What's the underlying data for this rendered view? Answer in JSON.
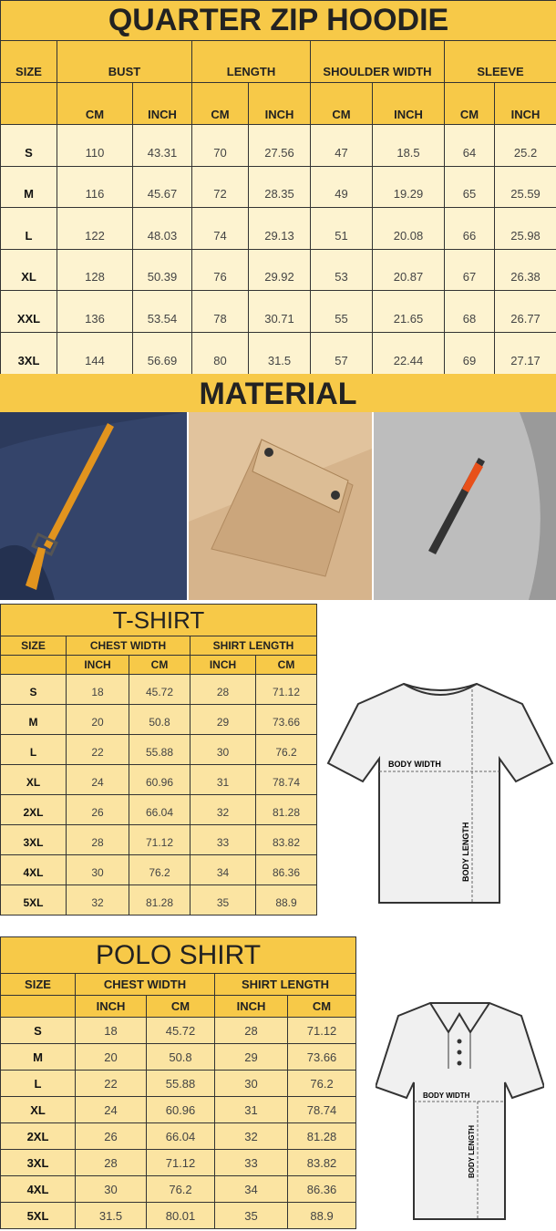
{
  "hoodie": {
    "title": "QUARTER ZIP HOODIE",
    "headers": [
      "SIZE",
      "BUST",
      "LENGTH",
      "SHOULDER WIDTH",
      "SLEEVE"
    ],
    "subheaders": [
      "CM",
      "INCH",
      "CM",
      "INCH",
      "CM",
      "INCH",
      "CM",
      "INCH"
    ],
    "rows": [
      [
        "S",
        "110",
        "43.31",
        "70",
        "27.56",
        "47",
        "18.5",
        "64",
        "25.2"
      ],
      [
        "M",
        "116",
        "45.67",
        "72",
        "28.35",
        "49",
        "19.29",
        "65",
        "25.59"
      ],
      [
        "L",
        "122",
        "48.03",
        "74",
        "29.13",
        "51",
        "20.08",
        "66",
        "25.98"
      ],
      [
        "XL",
        "128",
        "50.39",
        "76",
        "29.92",
        "53",
        "20.87",
        "67",
        "26.38"
      ],
      [
        "XXL",
        "136",
        "53.54",
        "78",
        "30.71",
        "55",
        "21.65",
        "68",
        "26.77"
      ],
      [
        "3XL",
        "144",
        "56.69",
        "80",
        "31.5",
        "57",
        "22.44",
        "69",
        "27.17"
      ]
    ]
  },
  "material": {
    "title": "MATERIAL",
    "photos": [
      "navy-pocket-zipper-closeup",
      "khaki-flap-pocket-closeup",
      "grey-sleeve-zipper-closeup"
    ]
  },
  "tshirt": {
    "title": "T-SHIRT",
    "headers": [
      "SIZE",
      "CHEST WIDTH",
      "SHIRT LENGTH"
    ],
    "subheaders": [
      "INCH",
      "CM",
      "INCH",
      "CM"
    ],
    "rows": [
      [
        "S",
        "18",
        "45.72",
        "28",
        "71.12"
      ],
      [
        "M",
        "20",
        "50.8",
        "29",
        "73.66"
      ],
      [
        "L",
        "22",
        "55.88",
        "30",
        "76.2"
      ],
      [
        "XL",
        "24",
        "60.96",
        "31",
        "78.74"
      ],
      [
        "2XL",
        "26",
        "66.04",
        "32",
        "81.28"
      ],
      [
        "3XL",
        "28",
        "71.12",
        "33",
        "83.82"
      ],
      [
        "4XL",
        "30",
        "76.2",
        "34",
        "86.36"
      ],
      [
        "5XL",
        "32",
        "81.28",
        "35",
        "88.9"
      ]
    ],
    "diagram": {
      "width_label": "BODY WIDTH",
      "length_label": "BODY LENGTH"
    }
  },
  "polo": {
    "title": "POLO SHIRT",
    "headers": [
      "SIZE",
      "CHEST WIDTH",
      "SHIRT LENGTH"
    ],
    "subheaders": [
      "INCH",
      "CM",
      "INCH",
      "CM"
    ],
    "rows": [
      [
        "S",
        "18",
        "45.72",
        "28",
        "71.12"
      ],
      [
        "M",
        "20",
        "50.8",
        "29",
        "73.66"
      ],
      [
        "L",
        "22",
        "55.88",
        "30",
        "76.2"
      ],
      [
        "XL",
        "24",
        "60.96",
        "31",
        "78.74"
      ],
      [
        "2XL",
        "26",
        "66.04",
        "32",
        "81.28"
      ],
      [
        "3XL",
        "28",
        "71.12",
        "33",
        "83.82"
      ],
      [
        "4XL",
        "30",
        "76.2",
        "34",
        "86.36"
      ],
      [
        "5XL",
        "31.5",
        "80.01",
        "35",
        "88.9"
      ]
    ],
    "diagram": {
      "width_label": "BODY WIDTH",
      "length_label": "BODY LENGTH"
    }
  },
  "colors": {
    "header": "#f7c948",
    "hoodie_cell": "#fdf3d0",
    "shirt_cell": "#fbe4a2"
  }
}
